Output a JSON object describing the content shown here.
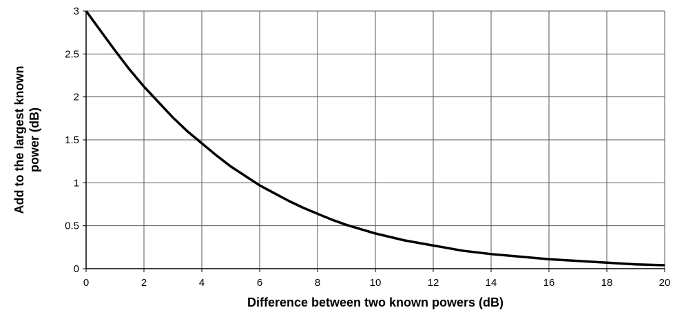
{
  "chart_data": {
    "type": "line",
    "xlabel": "Difference between two known powers (dB)",
    "ylabel": [
      "Add to the largest known",
      "power (dB)"
    ],
    "x": [
      0,
      0.5,
      1,
      1.5,
      2,
      2.5,
      3,
      3.5,
      4,
      4.5,
      5,
      5.5,
      6,
      6.5,
      7,
      7.5,
      8,
      8.5,
      9,
      9.5,
      10,
      11,
      12,
      13,
      14,
      15,
      16,
      17,
      18,
      19,
      20
    ],
    "series": [
      {
        "name": "Add to the largest known power",
        "color": "#000000",
        "values": [
          3.0,
          2.77,
          2.54,
          2.32,
          2.12,
          1.94,
          1.76,
          1.6,
          1.46,
          1.32,
          1.19,
          1.08,
          0.97,
          0.88,
          0.79,
          0.71,
          0.64,
          0.57,
          0.51,
          0.46,
          0.41,
          0.33,
          0.27,
          0.21,
          0.17,
          0.14,
          0.11,
          0.09,
          0.07,
          0.05,
          0.04
        ]
      }
    ],
    "xlim": [
      0,
      20
    ],
    "xticks": [
      0,
      2,
      4,
      6,
      8,
      10,
      12,
      14,
      16,
      18,
      20
    ],
    "ylim": [
      0,
      3
    ],
    "yticks": [
      0,
      0.5,
      1,
      1.5,
      2,
      2.5,
      3
    ],
    "grid": true
  }
}
